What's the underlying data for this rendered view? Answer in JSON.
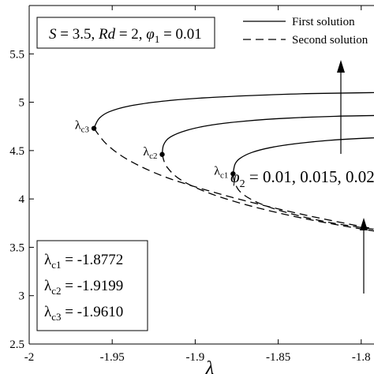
{
  "chart_data": {
    "type": "line",
    "xlabel": "λ",
    "ylabel": "",
    "xlim": [
      -2.0,
      -1.75
    ],
    "ylim": [
      2.5,
      6.0
    ],
    "xticks": [
      -2.0,
      -1.95,
      -1.9,
      -1.85,
      -1.8
    ],
    "xtick_labels": [
      "-2",
      "-1.95",
      "-1.9",
      "-1.85",
      "-1.8"
    ],
    "yticks": [
      2.5,
      3.0,
      3.5,
      4.0,
      4.5,
      5.0,
      5.5
    ],
    "ytick_labels": [
      "2.5",
      "3",
      "3.5",
      "4",
      "4.5",
      "5",
      "5.5"
    ],
    "grid": false,
    "params_box": {
      "S": "S = 3.5, ",
      "Rd": "Rd = 2, ",
      "phi1": "φ",
      "phi1_sub": "1",
      "phi1_val": " = 0.01"
    },
    "legend": {
      "position": "top-right",
      "entries": [
        {
          "label": "First solution",
          "style": "solid"
        },
        {
          "label": "Second solution",
          "style": "dashed"
        }
      ]
    },
    "phi2_annotation": {
      "symbol": "φ",
      "sub": "2",
      "text": " = 0.01, 0.015, 0.02"
    },
    "critical_values": [
      {
        "label": "λ",
        "sub": "c1",
        "value_text": " = -1.8772",
        "x": -1.8772,
        "y": 4.26
      },
      {
        "label": "λ",
        "sub": "c2",
        "value_text": " = -1.9199",
        "x": -1.9199,
        "y": 4.46
      },
      {
        "label": "λ",
        "sub": "c3",
        "value_text": " = -1.9610",
        "x": -1.961,
        "y": 4.73
      }
    ],
    "series": [
      {
        "style": "solid",
        "points": [
          [
            -1.8772,
            4.26
          ],
          [
            -1.876,
            4.36
          ],
          [
            -1.873,
            4.42
          ],
          [
            -1.866,
            4.48
          ],
          [
            -1.855,
            4.53
          ],
          [
            -1.84,
            4.57
          ],
          [
            -1.82,
            4.605
          ],
          [
            -1.795,
            4.63
          ],
          [
            -1.765,
            4.645
          ],
          [
            -1.748,
            4.65
          ]
        ]
      },
      {
        "style": "solid",
        "points": [
          [
            -1.9199,
            4.46
          ],
          [
            -1.919,
            4.56
          ],
          [
            -1.915,
            4.64
          ],
          [
            -1.905,
            4.71
          ],
          [
            -1.89,
            4.765
          ],
          [
            -1.87,
            4.805
          ],
          [
            -1.845,
            4.835
          ],
          [
            -1.815,
            4.855
          ],
          [
            -1.78,
            4.865
          ],
          [
            -1.748,
            4.87
          ]
        ]
      },
      {
        "style": "solid",
        "points": [
          [
            -1.961,
            4.73
          ],
          [
            -1.958,
            4.83
          ],
          [
            -1.952,
            4.9
          ],
          [
            -1.94,
            4.96
          ],
          [
            -1.92,
            5.01
          ],
          [
            -1.895,
            5.045
          ],
          [
            -1.865,
            5.07
          ],
          [
            -1.83,
            5.09
          ],
          [
            -1.79,
            5.1
          ],
          [
            -1.748,
            5.105
          ]
        ]
      },
      {
        "style": "dashed",
        "points": [
          [
            -1.8772,
            4.26
          ],
          [
            -1.876,
            4.16
          ],
          [
            -1.872,
            4.06
          ],
          [
            -1.862,
            3.96
          ],
          [
            -1.845,
            3.86
          ],
          [
            -1.82,
            3.76
          ],
          [
            -1.79,
            3.68
          ],
          [
            -1.765,
            3.62
          ],
          [
            -1.748,
            3.59
          ]
        ]
      },
      {
        "style": "dashed",
        "points": [
          [
            -1.9199,
            4.46
          ],
          [
            -1.917,
            4.33
          ],
          [
            -1.908,
            4.19
          ],
          [
            -1.89,
            4.05
          ],
          [
            -1.865,
            3.92
          ],
          [
            -1.835,
            3.8
          ],
          [
            -1.8,
            3.69
          ],
          [
            -1.77,
            3.615
          ],
          [
            -1.748,
            3.57
          ]
        ]
      },
      {
        "style": "dashed",
        "points": [
          [
            -1.961,
            4.73
          ],
          [
            -1.953,
            4.56
          ],
          [
            -1.94,
            4.4
          ],
          [
            -1.92,
            4.24
          ],
          [
            -1.895,
            4.1
          ],
          [
            -1.865,
            3.96
          ],
          [
            -1.83,
            3.82
          ],
          [
            -1.795,
            3.7
          ],
          [
            -1.765,
            3.61
          ],
          [
            -1.748,
            3.56
          ]
        ]
      }
    ]
  }
}
